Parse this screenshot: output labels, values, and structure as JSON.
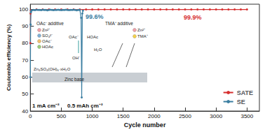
{
  "chart_data": {
    "type": "line",
    "x_label": "Cycle number",
    "y_label": "Coulombic efficiency (%)",
    "xlim": [
      0,
      3700
    ],
    "xticks": [
      0,
      500,
      1000,
      1500,
      2000,
      2500,
      3000,
      3500
    ],
    "ylim": [
      40,
      103
    ],
    "yticks": [
      40,
      50,
      60,
      70,
      80,
      90,
      100
    ],
    "grid": false,
    "legend": "lower right",
    "series": [
      {
        "name": "SATE",
        "color": "#d62f2f",
        "marker": "circle",
        "x": [
          1,
          4,
          8,
          100,
          200,
          300,
          400,
          500,
          600,
          700,
          800,
          900,
          1000,
          1100,
          1200,
          1300,
          1400,
          1500,
          1600,
          1700,
          1800,
          1900,
          2000,
          2100,
          2200,
          2300,
          2400,
          2500,
          2600,
          2700,
          2800,
          2900,
          3000,
          3100,
          3200,
          3300,
          3400,
          3500
        ],
        "values": [
          80,
          97.5,
          99.4,
          99.9,
          99.9,
          99.9,
          99.9,
          99.9,
          99.9,
          99.9,
          99.9,
          99.9,
          99.9,
          99.9,
          99.9,
          99.9,
          99.9,
          99.9,
          99.9,
          99.9,
          99.9,
          99.9,
          99.9,
          99.9,
          99.9,
          99.9,
          99.9,
          99.9,
          99.9,
          99.9,
          99.9,
          99.9,
          99.9,
          99.9,
          99.9,
          99.9,
          99.9,
          99.9
        ]
      },
      {
        "name": "SE",
        "color": "#3b7ea1",
        "marker": "circle",
        "x": [
          1,
          5,
          10,
          15,
          25,
          50,
          75,
          100,
          125,
          150,
          175,
          200,
          225,
          250,
          275,
          300,
          325,
          350,
          375,
          400,
          425,
          450,
          475,
          500,
          525,
          550,
          575,
          600,
          625,
          650,
          675,
          700,
          725,
          750,
          775,
          800,
          820,
          830,
          840,
          850
        ],
        "values": [
          60,
          91,
          98.2,
          99.1,
          99.4,
          99.6,
          99.5,
          99.7,
          99.6,
          99.6,
          99.5,
          99.7,
          99.6,
          99.6,
          99.4,
          99.6,
          99.7,
          99.6,
          99.5,
          99.6,
          99.6,
          99.7,
          99.6,
          99.5,
          99.6,
          99.6,
          99.7,
          99.6,
          99.5,
          99.6,
          99.6,
          99.7,
          99.6,
          99.4,
          99.6,
          99.6,
          95,
          48,
          97.5,
          99.2
        ]
      }
    ],
    "annotations": [
      "99.6%",
      "99.9%",
      "1 mA cm⁻²",
      "0.5 mAh cm⁻²",
      "OAc⁻ additive",
      "Zn²⁺",
      "SO₄²⁻",
      "OAc⁻",
      "HOAc",
      "OAc⁻",
      "HOAc",
      "OH⁻",
      "H₂O",
      "Zn₄SO₄(OH)₆·xH₂O",
      "Zinc base",
      "TMA⁺ additive",
      "Zn²⁺",
      "TMA⁺"
    ]
  }
}
